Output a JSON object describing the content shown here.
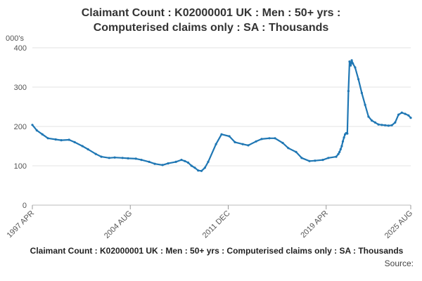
{
  "chart_data": {
    "type": "line",
    "title_lines": [
      "Claimant Count : K02000001 UK : Men : 50+ yrs :",
      "Computerised claims only : SA : Thousands"
    ],
    "ylabel": "000's",
    "xlabel": "",
    "ylim": [
      0,
      400
    ],
    "y_ticks": [
      0,
      100,
      200,
      300,
      400
    ],
    "x_range": [
      "1997-04",
      "2025-08"
    ],
    "x_ticks": [
      "1997 APR",
      "2004 AUG",
      "2011 DEC",
      "2019 APR",
      "2025 AUG"
    ],
    "x_tick_dates": [
      "1997-04",
      "2004-08",
      "2011-12",
      "2019-04",
      "2025-08"
    ],
    "grid": "horizontal",
    "legend": "none",
    "line_color": "#1f77b4",
    "series": [
      {
        "x": [
          "1997-04",
          "1997-08",
          "1998-01",
          "1998-06",
          "1999-01",
          "1999-06",
          "2000-01",
          "2000-06",
          "2001-01",
          "2001-06",
          "2002-01",
          "2002-06",
          "2003-01",
          "2003-06",
          "2004-01",
          "2004-06",
          "2005-01",
          "2005-06",
          "2006-01",
          "2006-06",
          "2007-01",
          "2007-06",
          "2008-01",
          "2008-06",
          "2008-09",
          "2008-12",
          "2009-03",
          "2009-06",
          "2009-09",
          "2009-12",
          "2010-03",
          "2010-06",
          "2011-01",
          "2011-06",
          "2012-01",
          "2012-06",
          "2013-01",
          "2013-06",
          "2014-01",
          "2014-06",
          "2015-01",
          "2015-06",
          "2016-01",
          "2016-06",
          "2017-01",
          "2017-06",
          "2018-01",
          "2018-06",
          "2019-01",
          "2019-06",
          "2020-01",
          "2020-03",
          "2020-04",
          "2020-05",
          "2020-06",
          "2020-07",
          "2020-08",
          "2020-09",
          "2020-10",
          "2020-11",
          "2020-12",
          "2021-01",
          "2021-02",
          "2021-03",
          "2021-04",
          "2021-06",
          "2021-09",
          "2021-12",
          "2022-03",
          "2022-06",
          "2022-09",
          "2022-12",
          "2023-03",
          "2023-06",
          "2023-09",
          "2023-12",
          "2024-03",
          "2024-06",
          "2024-09",
          "2024-12",
          "2025-03",
          "2025-06",
          "2025-08"
        ],
        "values": [
          204,
          190,
          180,
          170,
          167,
          165,
          166,
          160,
          150,
          142,
          130,
          123,
          120,
          121,
          120,
          119,
          118,
          115,
          110,
          105,
          102,
          106,
          110,
          115,
          112,
          108,
          100,
          95,
          88,
          87,
          95,
          110,
          155,
          180,
          175,
          160,
          155,
          152,
          162,
          168,
          170,
          170,
          158,
          145,
          135,
          120,
          112,
          113,
          115,
          120,
          123,
          130,
          135,
          142,
          150,
          162,
          172,
          180,
          183,
          182,
          290,
          365,
          355,
          368,
          360,
          350,
          320,
          285,
          255,
          225,
          215,
          210,
          205,
          204,
          203,
          202,
          203,
          210,
          230,
          235,
          232,
          228,
          222
        ]
      }
    ]
  },
  "footer": {
    "caption": "Claimant Count : K02000001 UK : Men : 50+ yrs : Computerised claims only : SA : Thousands",
    "source": "Source:"
  }
}
